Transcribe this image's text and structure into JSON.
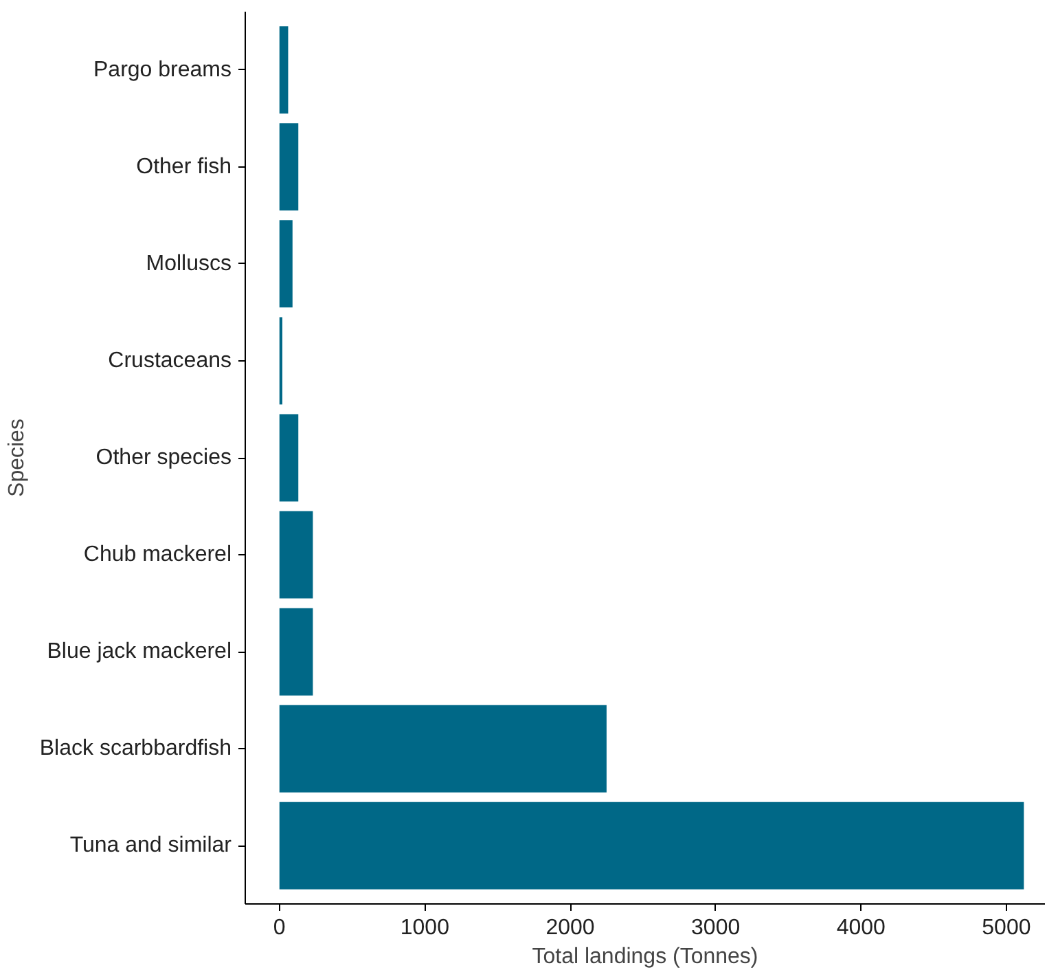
{
  "chart_data": {
    "type": "bar",
    "orientation": "horizontal",
    "xlabel": "Total landings (Tonnes)",
    "ylabel": "Species",
    "categories": [
      "Pargo breams",
      "Other fish",
      "Molluscs",
      "Crustaceans",
      "Other species",
      "Chub mackerel",
      "Blue jack mackerel",
      "Black scarbbardfish",
      "Tuna and similar"
    ],
    "values": [
      60,
      130,
      90,
      20,
      130,
      230,
      230,
      2250,
      5120
    ],
    "color": "#006887",
    "xlim": [
      -235,
      5265
    ],
    "xticks": [
      0,
      1000,
      2000,
      3000,
      4000,
      5000
    ],
    "grid": false
  }
}
